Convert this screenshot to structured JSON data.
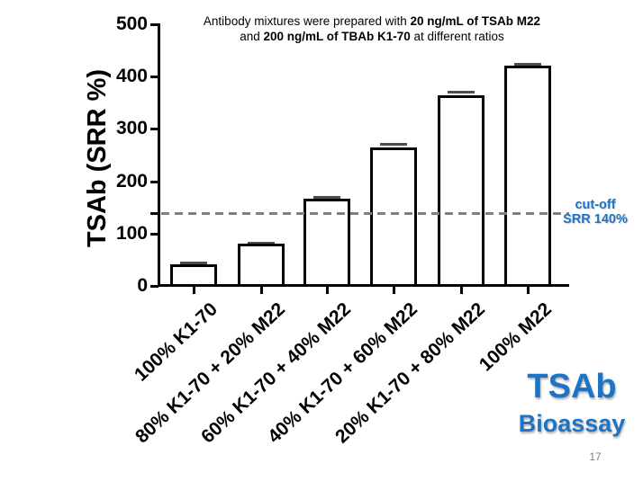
{
  "chart_data": {
    "type": "bar",
    "title_segments": [
      {
        "text": "Antibody mixtures were prepared with ",
        "bold": false
      },
      {
        "text": "20 ng/mL of TSAb M22",
        "bold": true
      },
      {
        "text": " and ",
        "bold": false
      },
      {
        "text": "200 ng/mL of TBAb K1-70",
        "bold": true
      },
      {
        "text": " at different ratios",
        "bold": false
      }
    ],
    "ylabel": "TSAb (SRR %)",
    "xlabel": "",
    "ylim": [
      0,
      500
    ],
    "yticks": [
      0,
      100,
      200,
      300,
      400,
      500
    ],
    "categories": [
      "100% K1-70",
      "80% K1-70 + 20% M22",
      "60% K1-70 + 40% M22",
      "40% K1-70 + 60% M22",
      "20% K1-70 + 80% M22",
      "100% M22"
    ],
    "values": [
      38,
      78,
      164,
      262,
      361,
      417
    ],
    "errors": [
      5,
      3,
      4,
      7,
      9,
      5
    ],
    "grid": false,
    "bar_fill": "#ffffff",
    "bar_border": "#000000",
    "cutoff": {
      "value": 140,
      "label_line1": "cut-off",
      "label_line2": "SRR 140%",
      "line_color": "#7f7f7f",
      "label_color": "#1E73C4"
    }
  },
  "branding": {
    "line1": "TSAb",
    "line2": "Bioassay",
    "color": "#1E73C4"
  },
  "footer": {
    "page_number": "17"
  }
}
